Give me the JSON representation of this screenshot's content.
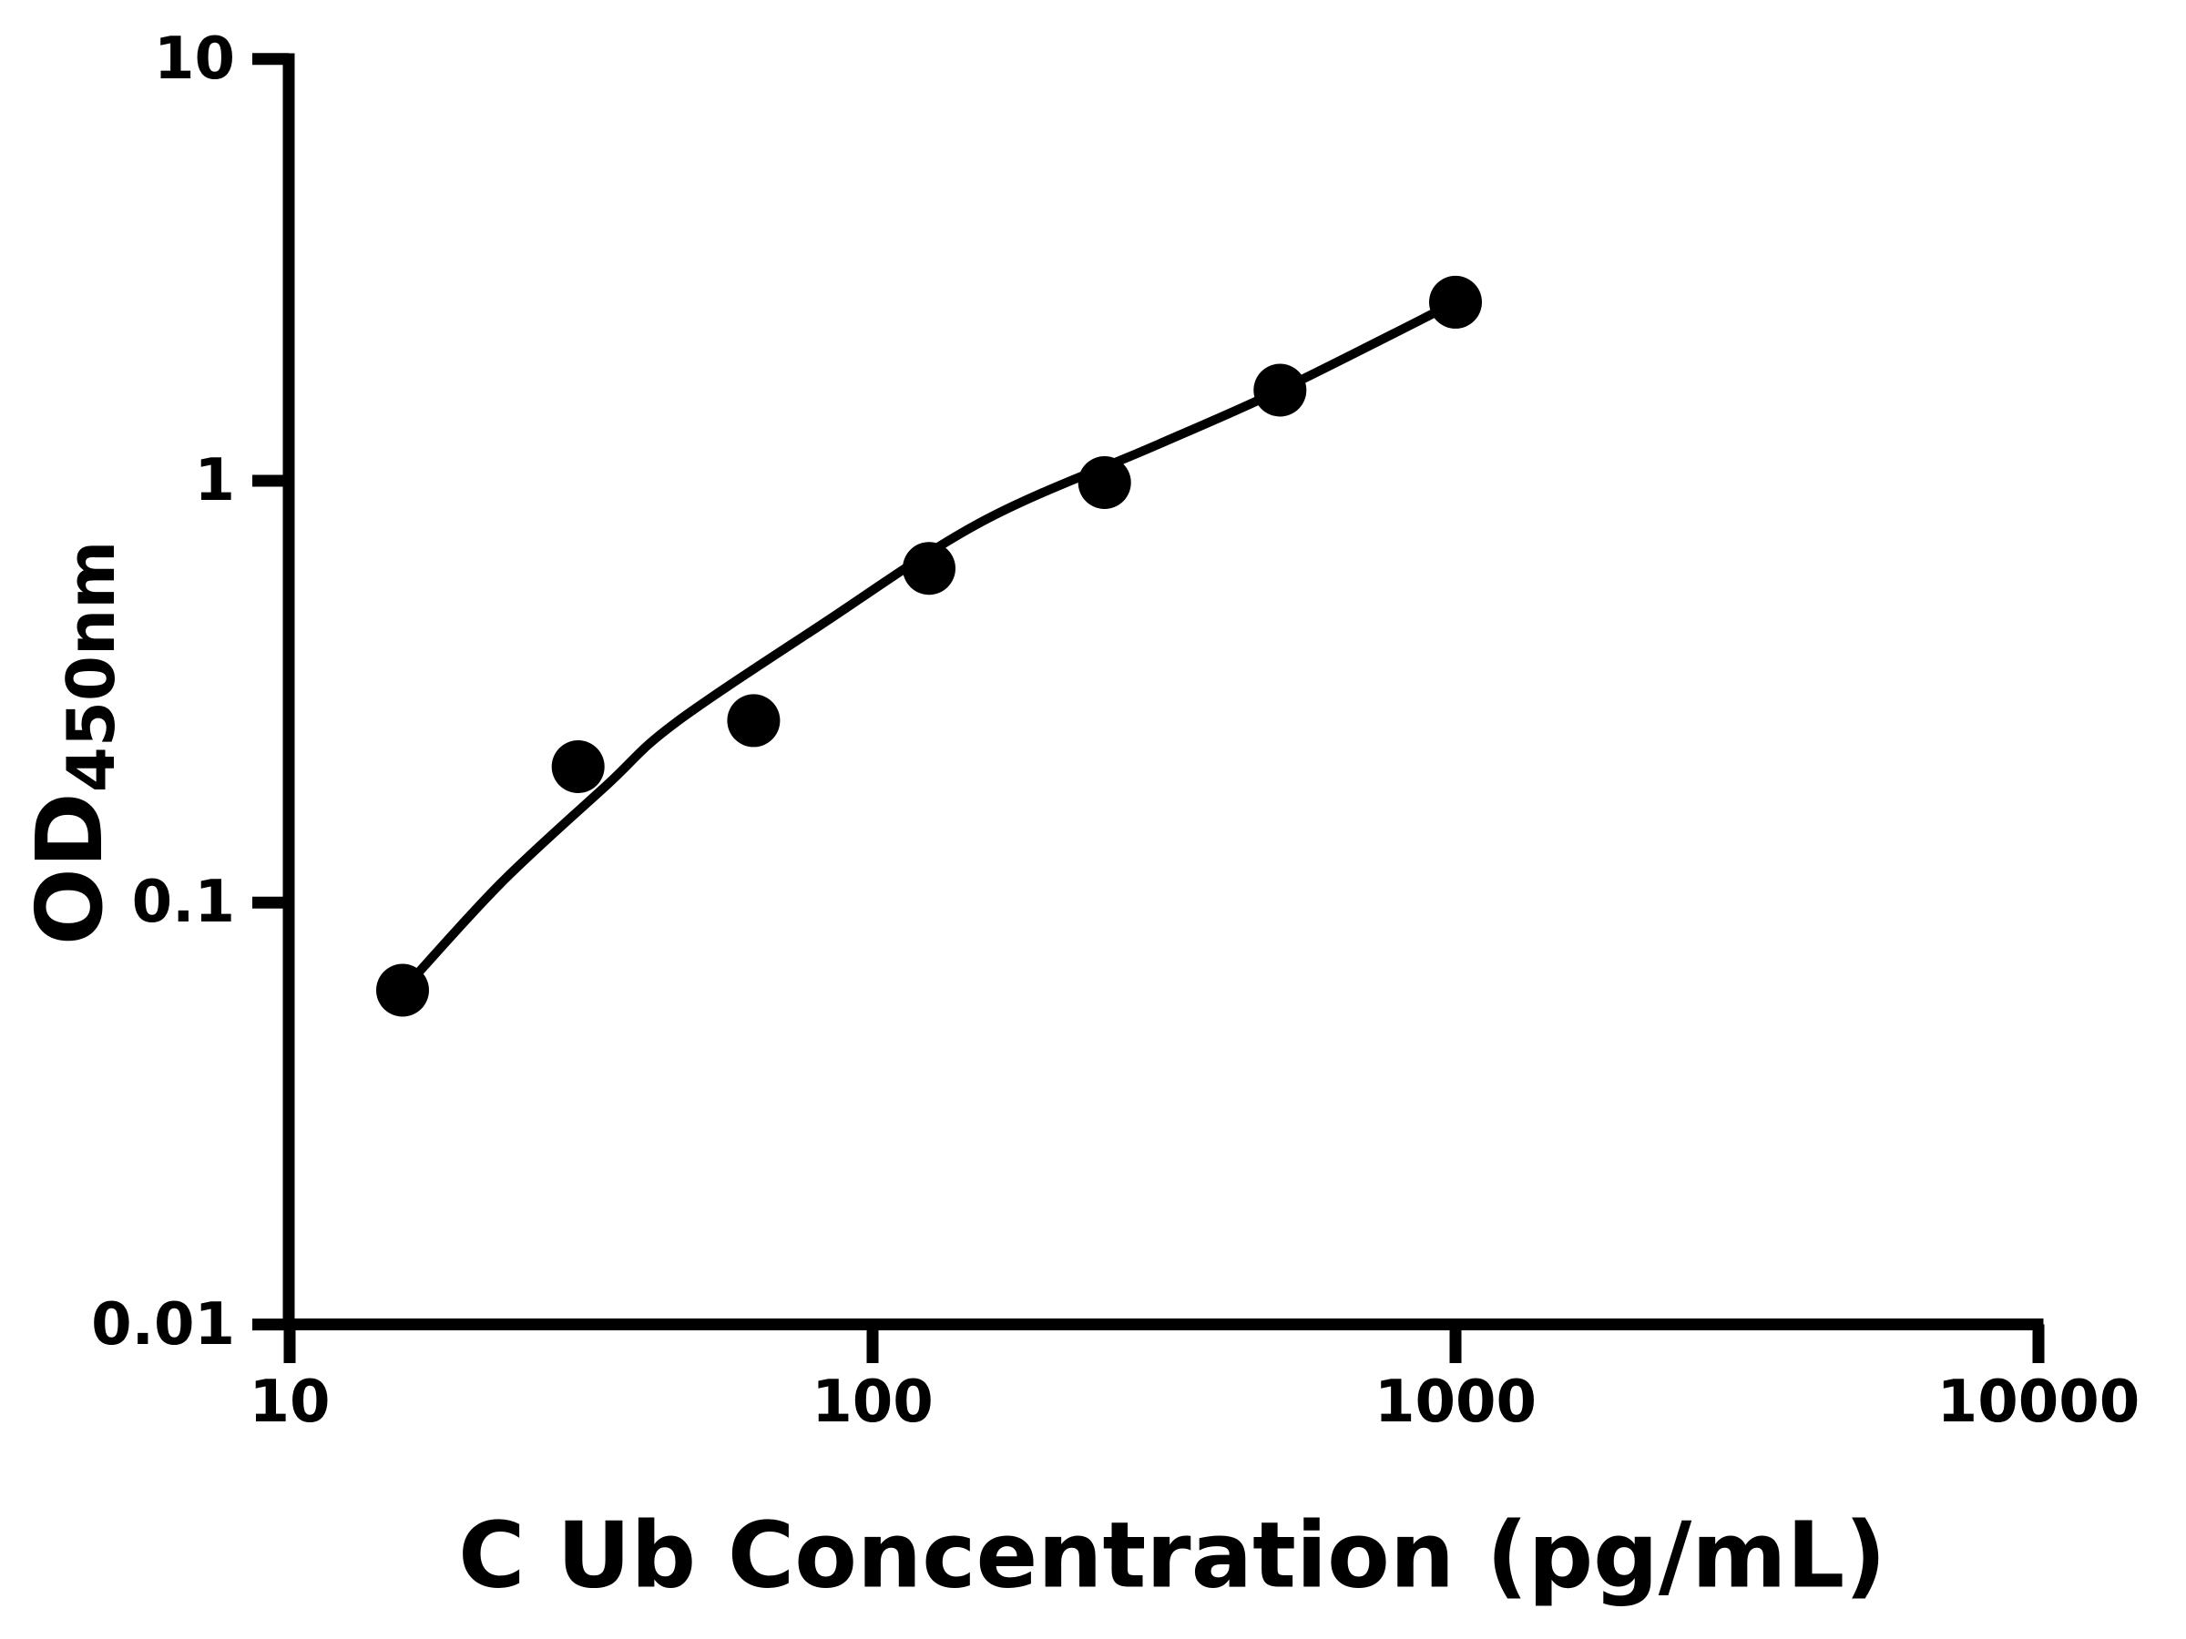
{
  "chart_data": {
    "type": "scatter",
    "title": "",
    "xlabel": "C Ub Concentration (pg/mL)",
    "ylabel": "OD450nm",
    "ylabel_main": "OD",
    "ylabel_sub": "450nm",
    "x_scale": "log",
    "y_scale": "log",
    "xlim": [
      10,
      10000
    ],
    "ylim": [
      0.01,
      10
    ],
    "grid": false,
    "legend": false,
    "background_color": "#ffffff",
    "foreground_color": "#000000",
    "x_ticks": [
      {
        "label": "10",
        "value": 10
      },
      {
        "label": "100",
        "value": 100
      },
      {
        "label": "1000",
        "value": 1000
      },
      {
        "label": "10000",
        "value": 10000
      }
    ],
    "y_ticks": [
      {
        "label": "10",
        "value": 10
      },
      {
        "label": "1",
        "value": 1
      },
      {
        "label": "0.1",
        "value": 0.1
      },
      {
        "label": "0.01",
        "value": 0.01
      }
    ],
    "series": [
      {
        "name": "standard-curve-points",
        "marker": "filled-circle",
        "marker_color": "#000000",
        "x": [
          15.625,
          31.25,
          62.5,
          125,
          250,
          500,
          1000
        ],
        "od": [
          0.062,
          0.21,
          0.27,
          0.62,
          0.99,
          1.64,
          2.65
        ]
      }
    ],
    "fit_curve": {
      "name": "fitted-standard-curve",
      "line_color": "#000000",
      "points": [
        [
          15.625,
          0.062
        ],
        [
          23,
          0.111
        ],
        [
          35,
          0.19
        ],
        [
          45.6,
          0.265
        ],
        [
          81.5,
          0.455
        ],
        [
          154,
          0.8
        ],
        [
          305,
          1.21
        ],
        [
          500,
          1.64
        ],
        [
          1000,
          2.65
        ]
      ]
    }
  }
}
